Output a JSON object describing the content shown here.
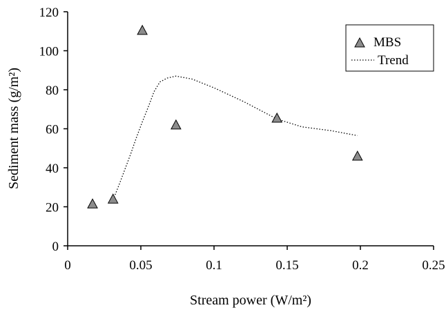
{
  "chart_data": {
    "type": "scatter",
    "xlabel": "Stream power (W/m²)",
    "ylabel": "Sediment mass (g/m²)",
    "xlim": [
      0,
      0.25
    ],
    "ylim": [
      0,
      120
    ],
    "x_ticks": [
      0,
      0.05,
      0.1,
      0.15,
      0.2,
      0.25
    ],
    "x_tick_labels": [
      "0",
      "0.05",
      "0.1",
      "0.15",
      "0.2",
      "0.25"
    ],
    "y_ticks": [
      0,
      20,
      40,
      60,
      80,
      100,
      120
    ],
    "y_tick_labels": [
      "0",
      "20",
      "40",
      "60",
      "80",
      "100",
      "120"
    ],
    "grid": false,
    "legend_position": "top-right",
    "series": [
      {
        "name": "MBS",
        "kind": "marker",
        "marker": "triangle",
        "color": "#8c8c8c",
        "points": [
          {
            "x": 0.017,
            "y": 21.5
          },
          {
            "x": 0.031,
            "y": 24
          },
          {
            "x": 0.051,
            "y": 110.5
          },
          {
            "x": 0.074,
            "y": 62
          },
          {
            "x": 0.143,
            "y": 65.5
          },
          {
            "x": 0.198,
            "y": 46
          }
        ]
      },
      {
        "name": "Trend",
        "kind": "line",
        "style": "dotted",
        "color": "#000000",
        "points": [
          {
            "x": 0.031,
            "y": 23.5
          },
          {
            "x": 0.035,
            "y": 31
          },
          {
            "x": 0.039,
            "y": 39
          },
          {
            "x": 0.043,
            "y": 47
          },
          {
            "x": 0.047,
            "y": 55.5
          },
          {
            "x": 0.051,
            "y": 63.5
          },
          {
            "x": 0.055,
            "y": 71
          },
          {
            "x": 0.059,
            "y": 79
          },
          {
            "x": 0.063,
            "y": 84
          },
          {
            "x": 0.068,
            "y": 86
          },
          {
            "x": 0.074,
            "y": 87
          },
          {
            "x": 0.085,
            "y": 85.5
          },
          {
            "x": 0.1,
            "y": 81
          },
          {
            "x": 0.12,
            "y": 74
          },
          {
            "x": 0.143,
            "y": 65
          },
          {
            "x": 0.16,
            "y": 61
          },
          {
            "x": 0.18,
            "y": 59
          },
          {
            "x": 0.198,
            "y": 56.5
          }
        ]
      }
    ]
  }
}
